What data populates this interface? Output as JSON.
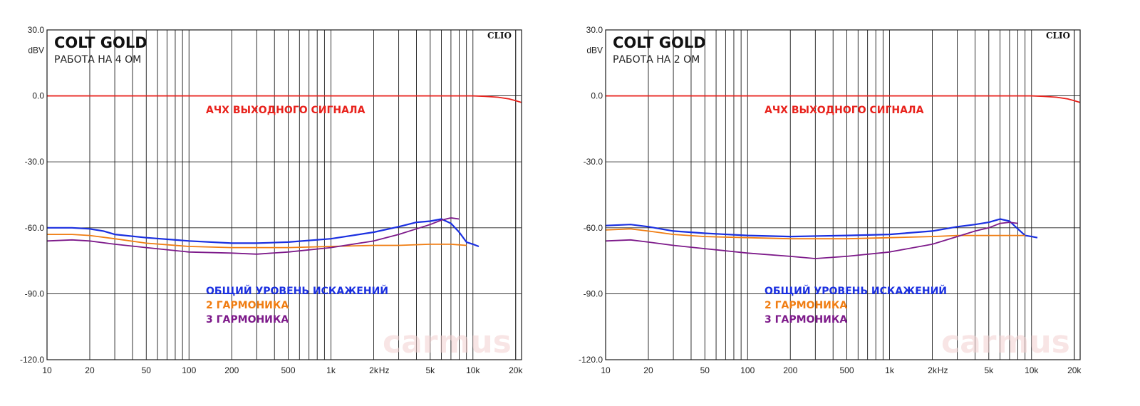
{
  "chart_data": [
    {
      "type": "line",
      "title": "COLT GOLD",
      "subtitle": "РАБОТА НА 4 ОМ",
      "brand": "CLIO",
      "watermark": "carmus",
      "ylabel": "dBV",
      "xunit": "Hz",
      "xscale": "log",
      "xlim": [
        10,
        22000
      ],
      "ylim": [
        -120,
        30
      ],
      "grid": true,
      "yticks": [
        "30.0",
        "0.0",
        "-30.0",
        "-60.0",
        "-90.0",
        "-120.0"
      ],
      "xticks": [
        {
          "v": 10,
          "label": "10"
        },
        {
          "v": 20,
          "label": "20"
        },
        {
          "v": 50,
          "label": "50"
        },
        {
          "v": 100,
          "label": "100"
        },
        {
          "v": 200,
          "label": "200"
        },
        {
          "v": 500,
          "label": "500"
        },
        {
          "v": 1000,
          "label": "1k"
        },
        {
          "v": 2000,
          "label": "2k"
        },
        {
          "v": 5000,
          "label": "5k"
        },
        {
          "v": 10000,
          "label": "10k"
        },
        {
          "v": 20000,
          "label": "20k"
        }
      ],
      "annotations": [
        "АЧХ ВЫХОДНОГО СИГНАЛА",
        "ОБЩИЙ УРОВЕНЬ ИСКАЖЕНИЙ",
        "2 ГАРМОНИКА",
        "3 ГАРМОНИКА"
      ],
      "series": [
        {
          "name": "АЧХ ВЫХОДНОГО СИГНАЛА",
          "color": "#e8221c",
          "x": [
            10,
            100,
            1000,
            5000,
            10000,
            12000,
            15000,
            18000,
            20000,
            22000
          ],
          "y": [
            0.0,
            0.0,
            0.0,
            0.0,
            0.0,
            -0.2,
            -0.6,
            -1.4,
            -2.2,
            -3.0
          ]
        },
        {
          "name": "ОБЩИЙ УРОВЕНЬ ИСКАЖЕНИЙ",
          "color": "#1a2fe0",
          "x": [
            10,
            15,
            20,
            25,
            30,
            50,
            100,
            200,
            300,
            500,
            1000,
            2000,
            3000,
            4000,
            5000,
            6000,
            7000,
            8000,
            9000,
            10000,
            11000
          ],
          "y": [
            -60,
            -60,
            -60.5,
            -61.5,
            -63,
            -64.5,
            -66,
            -67,
            -67,
            -66.5,
            -65,
            -62,
            -59.5,
            -57.5,
            -57,
            -56,
            -58,
            -62,
            -66.5,
            -67.5,
            -68.5
          ]
        },
        {
          "name": "2 ГАРМОНИКА",
          "color": "#f07d12",
          "x": [
            10,
            15,
            20,
            30,
            50,
            100,
            200,
            500,
            1000,
            2000,
            3000,
            5000,
            7000,
            9000
          ],
          "y": [
            -63,
            -63,
            -63.5,
            -65,
            -67,
            -68.5,
            -69,
            -69,
            -68.5,
            -68,
            -68,
            -67.5,
            -67.5,
            -68
          ]
        },
        {
          "name": "3 ГАРМОНИКА",
          "color": "#7d1a8a",
          "x": [
            10,
            15,
            20,
            30,
            50,
            100,
            200,
            300,
            500,
            1000,
            2000,
            3000,
            4000,
            5000,
            6000,
            7000,
            8000
          ],
          "y": [
            -66,
            -65.5,
            -66,
            -67.5,
            -69,
            -71,
            -71.5,
            -72,
            -71,
            -69,
            -66,
            -63,
            -60.5,
            -58.5,
            -56.5,
            -55.5,
            -56
          ]
        }
      ]
    },
    {
      "type": "line",
      "title": "COLT GOLD",
      "subtitle": "РАБОТА НА 2 ОМ",
      "brand": "CLIO",
      "watermark": "carmus",
      "ylabel": "dBV",
      "xunit": "Hz",
      "xscale": "log",
      "xlim": [
        10,
        22000
      ],
      "ylim": [
        -120,
        30
      ],
      "grid": true,
      "yticks": [
        "30.0",
        "0.0",
        "-30.0",
        "-60.0",
        "-90.0",
        "-120.0"
      ],
      "xticks": [
        {
          "v": 10,
          "label": "10"
        },
        {
          "v": 20,
          "label": "20"
        },
        {
          "v": 50,
          "label": "50"
        },
        {
          "v": 100,
          "label": "100"
        },
        {
          "v": 200,
          "label": "200"
        },
        {
          "v": 500,
          "label": "500"
        },
        {
          "v": 1000,
          "label": "1k"
        },
        {
          "v": 2000,
          "label": "2k"
        },
        {
          "v": 5000,
          "label": "5k"
        },
        {
          "v": 10000,
          "label": "10k"
        },
        {
          "v": 20000,
          "label": "20k"
        }
      ],
      "annotations": [
        "АЧХ ВЫХОДНОГО СИГНАЛА",
        "ОБЩИЙ УРОВЕНЬ ИСКАЖЕНИЙ",
        "2 ГАРМОНИКА",
        "3 ГАРМОНИКА"
      ],
      "series": [
        {
          "name": "АЧХ ВЫХОДНОГО СИГНАЛА",
          "color": "#e8221c",
          "x": [
            10,
            100,
            1000,
            5000,
            10000,
            12000,
            15000,
            18000,
            20000,
            22000
          ],
          "y": [
            0.0,
            0.0,
            0.0,
            0.0,
            0.0,
            -0.2,
            -0.6,
            -1.4,
            -2.2,
            -3.0
          ]
        },
        {
          "name": "ОБЩИЙ УРОВЕНЬ ИСКАЖЕНИЙ",
          "color": "#1a2fe0",
          "x": [
            10,
            15,
            20,
            30,
            50,
            100,
            200,
            500,
            1000,
            2000,
            3000,
            4000,
            5000,
            6000,
            7000,
            8000,
            9000,
            10000,
            11000
          ],
          "y": [
            -59,
            -58.5,
            -59.5,
            -61.5,
            -62.5,
            -63.5,
            -64,
            -63.5,
            -63,
            -61.5,
            -59.5,
            -58.5,
            -57.5,
            -56,
            -57,
            -60.5,
            -63.5,
            -64,
            -64.5
          ]
        },
        {
          "name": "2 ГАРМОНИКА",
          "color": "#f07d12",
          "x": [
            10,
            15,
            20,
            30,
            50,
            100,
            200,
            500,
            1000,
            2000,
            3000,
            5000,
            7000,
            9000
          ],
          "y": [
            -61,
            -60.5,
            -61.5,
            -63,
            -64,
            -64.5,
            -65,
            -65,
            -64.5,
            -64,
            -63.5,
            -63.5,
            -63.5,
            -63.5
          ]
        },
        {
          "name": "3 ГАРМОНИКА",
          "color": "#7d1a8a",
          "x": [
            10,
            15,
            20,
            30,
            50,
            100,
            200,
            300,
            500,
            1000,
            2000,
            3000,
            4000,
            5000,
            6000,
            7000,
            8000
          ],
          "y": [
            -66,
            -65.5,
            -66.5,
            -68,
            -69.5,
            -71.5,
            -73,
            -74,
            -73,
            -71,
            -67.5,
            -64,
            -61.5,
            -60,
            -58,
            -57.5,
            -58
          ]
        }
      ]
    }
  ]
}
